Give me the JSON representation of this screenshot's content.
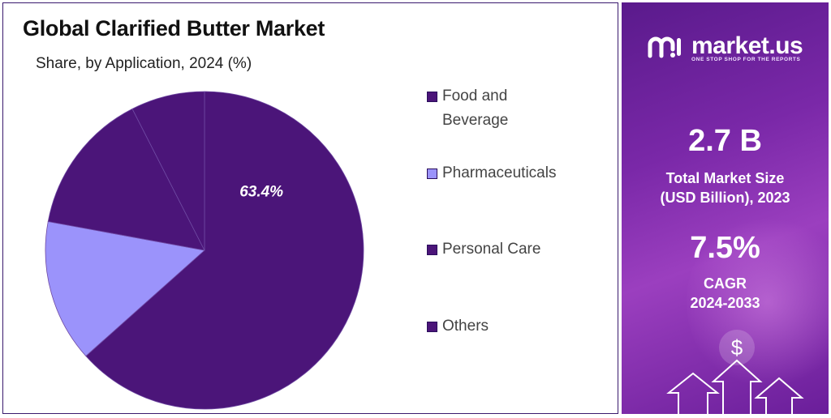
{
  "title": "Global Clarified Butter Market",
  "subtitle": "Share, by Application, 2024 (%)",
  "chart_data": {
    "type": "pie",
    "title": "Global Clarified Butter Market",
    "subtitle": "Share, by Application, 2024 (%)",
    "categories": [
      "Food and Beverage",
      "Pharmaceuticals",
      "Personal Care",
      "Others"
    ],
    "values": [
      63.4,
      14.5,
      14.6,
      7.5
    ],
    "labels": [
      "63.4%",
      "",
      "",
      ""
    ],
    "colors": [
      "#4b1579",
      "#9b93fb",
      "#4b1579",
      "#4b1579"
    ],
    "legend_position": "right"
  },
  "legend": [
    {
      "label": "Food and Beverage",
      "color": "#4b1579"
    },
    {
      "label": "Pharmaceuticals",
      "color": "#9b93fb"
    },
    {
      "label": "Personal Care",
      "color": "#4b1579"
    },
    {
      "label": "Others",
      "color": "#4b1579"
    }
  ],
  "brand": {
    "name": "market.us",
    "tagline": "ONE STOP SHOP FOR THE REPORTS",
    "logo_icon": "market-us-logo-icon"
  },
  "stats": {
    "market_size_value": "2.7 B",
    "market_size_label_line1": "Total Market Size",
    "market_size_label_line2": "(USD Billion), 2023",
    "cagr_value": "7.5%",
    "cagr_label_line1": "CAGR",
    "cagr_label_line2": "2024-2033"
  },
  "decoration": {
    "currency_symbol": "$",
    "icon": "growth-arrows-icon"
  }
}
